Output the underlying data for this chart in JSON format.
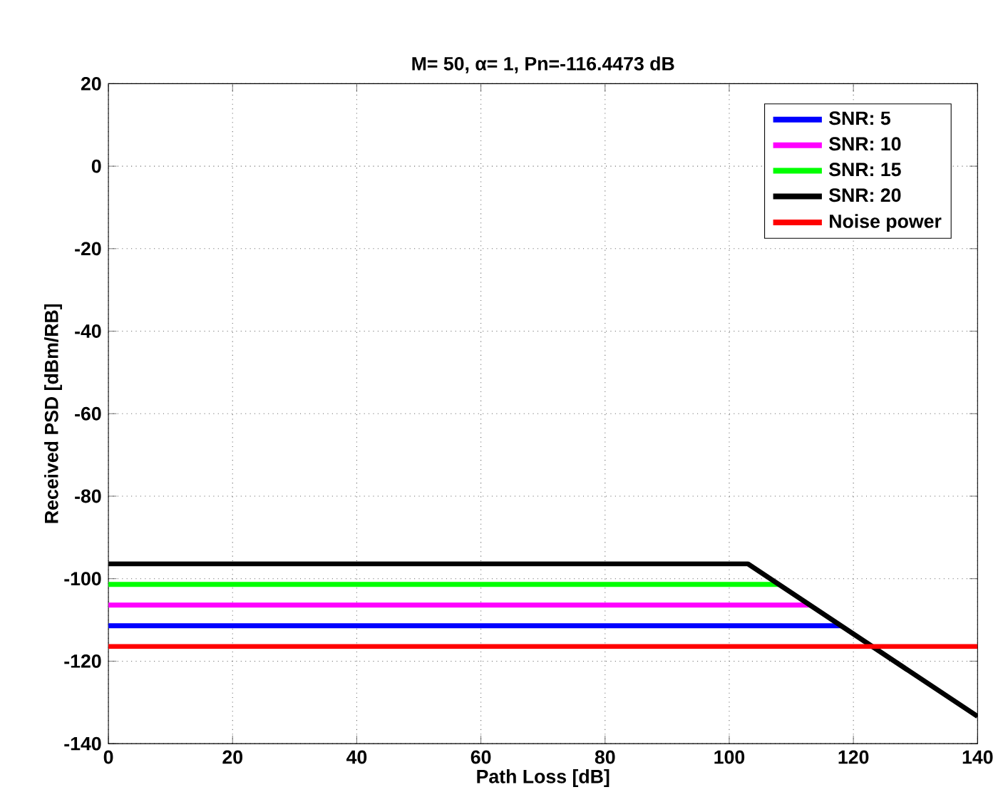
{
  "chart_data": {
    "type": "line",
    "title": "M= 50, α= 1, Pn=-116.4473 dB",
    "xlabel": "Path Loss [dB]",
    "ylabel": "Received PSD [dBm/RB]",
    "xlim": [
      0,
      140
    ],
    "ylim": [
      -140,
      20
    ],
    "xticks": [
      0,
      20,
      40,
      60,
      80,
      100,
      120,
      140
    ],
    "yticks": [
      -140,
      -120,
      -100,
      -80,
      -60,
      -40,
      -20,
      0,
      20
    ],
    "grid": true,
    "legend": "top right",
    "marker": "none",
    "line_style": "solid",
    "series": [
      {
        "name": "SNR: 5",
        "color": "#0000ff",
        "x": [
          0,
          118
        ],
        "values": [
          -111.4,
          -111.4
        ]
      },
      {
        "name": "SNR: 10",
        "color": "#ff00ff",
        "x": [
          0,
          113
        ],
        "values": [
          -106.4,
          -106.4
        ]
      },
      {
        "name": "SNR: 15",
        "color": "#00ff00",
        "x": [
          0,
          108
        ],
        "values": [
          -101.4,
          -101.4
        ]
      },
      {
        "name": "SNR: 20",
        "color": "#000000",
        "x": [
          0,
          103,
          140
        ],
        "values": [
          -96.4,
          -96.4,
          -133.4
        ]
      },
      {
        "name": "Noise power",
        "color": "#ff0000",
        "x": [
          0,
          140
        ],
        "values": [
          -116.4473,
          -116.4473
        ]
      }
    ]
  }
}
